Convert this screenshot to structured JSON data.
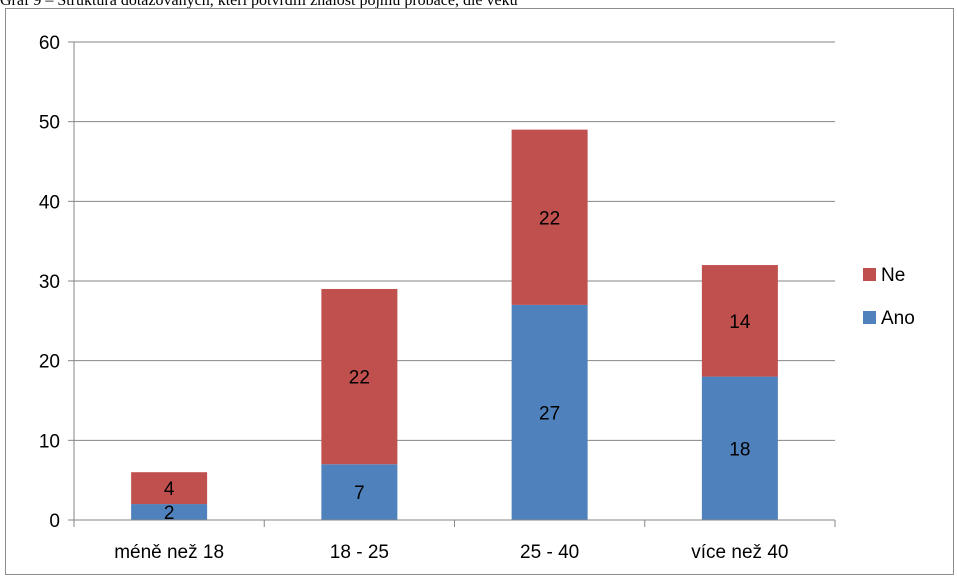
{
  "caption": "Graf 9 – Struktura dotazovaných, kteří potvrdili znalost pojmu probace, dle věku",
  "chart_data": {
    "type": "bar",
    "stacked": true,
    "categories": [
      "méně než 18",
      "18 - 25",
      "25 - 40",
      "více než 40"
    ],
    "series": [
      {
        "name": "Ano",
        "values": [
          2,
          7,
          27,
          18
        ],
        "color": "#4f81bd"
      },
      {
        "name": "Ne",
        "values": [
          4,
          22,
          22,
          14
        ],
        "color": "#c0504d"
      }
    ],
    "ylim": [
      0,
      60
    ],
    "yticks": [
      0,
      10,
      20,
      30,
      40,
      50,
      60
    ],
    "grid": true,
    "gridline_color": "#868686",
    "legend_position": "right",
    "data_labels": true
  }
}
